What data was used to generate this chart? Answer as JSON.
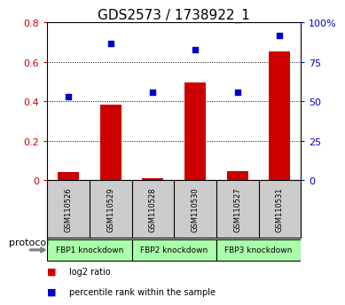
{
  "title": "GDS2573 / 1738922_1",
  "categories": [
    "GSM110526",
    "GSM110529",
    "GSM110528",
    "GSM110530",
    "GSM110527",
    "GSM110531"
  ],
  "log2_ratio": [
    0.04,
    0.385,
    0.01,
    0.495,
    0.045,
    0.655
  ],
  "percentile_rank": [
    53,
    87,
    56,
    83,
    56,
    92
  ],
  "ylim_left": [
    0,
    0.8
  ],
  "ylim_right": [
    0,
    100
  ],
  "yticks_left": [
    0,
    0.2,
    0.4,
    0.6,
    0.8
  ],
  "yticks_right": [
    0,
    25,
    50,
    75,
    100
  ],
  "ytick_labels_left": [
    "0",
    "0.2",
    "0.4",
    "0.6",
    "0.8"
  ],
  "ytick_labels_right": [
    "0",
    "25",
    "50",
    "75",
    "100%"
  ],
  "bar_color": "#cc0000",
  "dot_color": "#0000cc",
  "groups": [
    {
      "label": "FBP1 knockdown",
      "start": 0,
      "end": 2,
      "color": "#aaffaa"
    },
    {
      "label": "FBP2 knockdown",
      "start": 2,
      "end": 4,
      "color": "#aaffaa"
    },
    {
      "label": "FBP3 knockdown",
      "start": 4,
      "end": 6,
      "color": "#aaffaa"
    }
  ],
  "protocol_label": "protocol",
  "legend_items": [
    {
      "label": "log2 ratio",
      "color": "#cc0000"
    },
    {
      "label": "percentile rank within the sample",
      "color": "#0000cc"
    }
  ],
  "background_color": "#ffffff",
  "sample_bg_color": "#cccccc",
  "title_fontsize": 11,
  "tick_label_fontsize": 8,
  "bar_width": 0.5,
  "axis_label_color_left": "#cc0000",
  "axis_label_color_right": "#0000cc"
}
